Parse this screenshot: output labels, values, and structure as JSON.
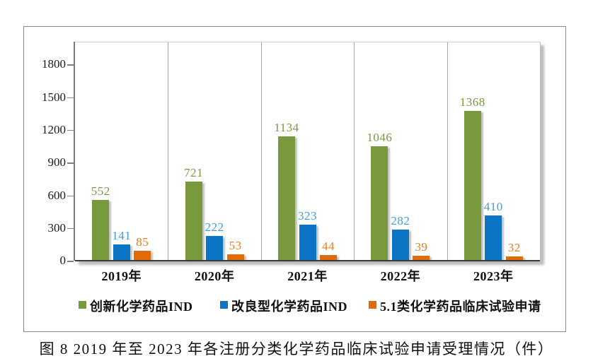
{
  "figure": {
    "caption": "图 8  2019 年至 2023 年各注册分类化学药品临床试验申请受理情况（件）"
  },
  "chart_data": {
    "type": "bar",
    "title": "",
    "categories": [
      "2019年",
      "2020年",
      "2021年",
      "2022年",
      "2023年"
    ],
    "series": [
      {
        "name": "创新化学药品IND",
        "color": "#789A3D",
        "label_color": "#7E9546",
        "values": [
          552,
          721,
          1134,
          1046,
          1368
        ]
      },
      {
        "name": "改良型化学药品IND",
        "color": "#0C74C4",
        "label_color": "#3E9FDB",
        "values": [
          141,
          222,
          323,
          282,
          410
        ]
      },
      {
        "name": "5.1类化学药品临床试验申请",
        "color": "#E16B09",
        "label_color": "#E97E22",
        "values": [
          85,
          53,
          44,
          39,
          32
        ]
      }
    ],
    "y_ticks": [
      1800,
      1500,
      1200,
      900,
      600,
      300,
      0
    ],
    "ylim": [
      0,
      2010
    ],
    "grid": "vertical-category-separators",
    "legend_position": "bottom-inside"
  }
}
